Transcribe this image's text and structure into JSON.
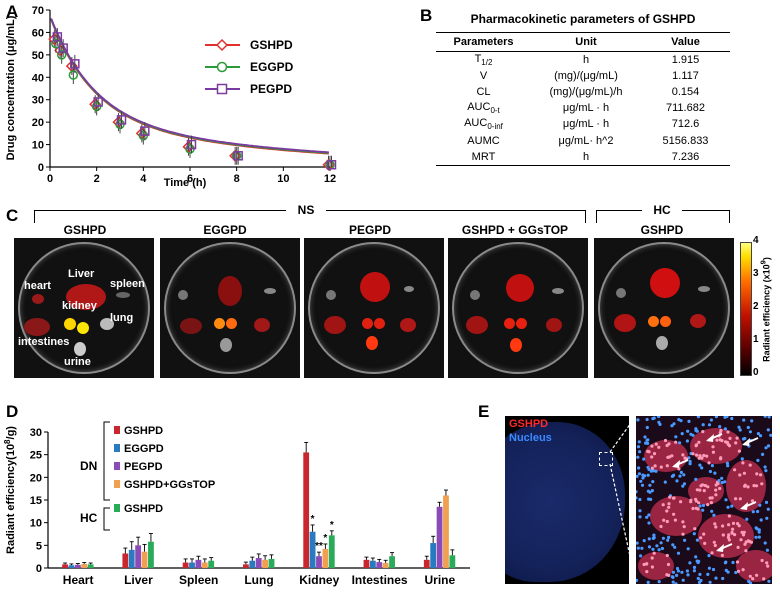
{
  "panels": {
    "a": "A",
    "b": "B",
    "c": "C",
    "d": "D",
    "e": "E"
  },
  "chart_a": {
    "type": "line",
    "xlabel": "Time (h)",
    "ylabel": "Drug concentration (μg/mL)",
    "xlim": [
      0,
      12
    ],
    "ylim": [
      0,
      70
    ],
    "xticks": [
      "0",
      "2",
      "4",
      "6",
      "8",
      "10",
      "12"
    ],
    "yticks": [
      "0",
      "10",
      "20",
      "30",
      "40",
      "50",
      "60",
      "70"
    ],
    "legend": [
      "GSHPD",
      "EGGPD",
      "PEGPD"
    ],
    "colors": {
      "GSHPD": "#e03030",
      "EGGPD": "#2a9a3a",
      "PEGPD": "#7a3aa0"
    },
    "x": [
      0.25,
      0.5,
      1,
      2,
      3,
      4,
      6,
      8,
      12
    ],
    "series": [
      {
        "name": "GSHPD",
        "values": [
          57,
          52,
          45,
          28,
          20,
          15,
          9,
          5,
          1
        ]
      },
      {
        "name": "EGGPD",
        "values": [
          55,
          50,
          41,
          27,
          19,
          14,
          8,
          5,
          1
        ]
      },
      {
        "name": "PEGPD",
        "values": [
          58,
          53,
          46,
          29,
          21,
          16,
          10,
          5,
          1
        ]
      }
    ]
  },
  "table_b": {
    "title": "Pharmacokinetic parameters of GSHPD",
    "headers": [
      "Parameters",
      "Unit",
      "Value"
    ],
    "rows": [
      {
        "p": "T",
        "sub": "1/2",
        "u": "h",
        "v": "1.915"
      },
      {
        "p": "V",
        "sub": "",
        "u": "(mg)/(μg/mL)",
        "v": "1.117"
      },
      {
        "p": "CL",
        "sub": "",
        "u": "(mg)/(μg/mL)/h",
        "v": "0.154"
      },
      {
        "p": "AUC",
        "sub": "0-t",
        "u": "μg/mL · h",
        "v": "711.682"
      },
      {
        "p": "AUC",
        "sub": "0-inf",
        "u": "μg/mL · h",
        "v": "712.6"
      },
      {
        "p": "AUMC",
        "sub": "",
        "u": "μg/mL· h^2",
        "v": "5156.833"
      },
      {
        "p": "MRT",
        "sub": "",
        "u": "h",
        "v": "7.236"
      }
    ]
  },
  "panel_c": {
    "group_ns": "NS",
    "group_hc": "HC",
    "dishes": [
      "GSHPD",
      "EGGPD",
      "PEGPD",
      "GSHPD + GGsTOP",
      "GSHPD"
    ],
    "organ_labels": {
      "liver": "Liver",
      "heart": "heart",
      "spleen": "spleen",
      "kidney": "kidney",
      "lung": "lung",
      "intestines": "intestines",
      "urine": "urine"
    },
    "colorbar_ticks": [
      "4",
      "3",
      "2",
      "1",
      "0"
    ],
    "colorbar_label": "Radiant efficiency (x10",
    "colorbar_exp": "9",
    "colorbar_close": ")"
  },
  "chart_d": {
    "type": "bar",
    "ylabel": "Radiant efficiency(10",
    "ylabel_exp": "8",
    "ylabel_unit": "/g)",
    "ylim": [
      0,
      30
    ],
    "yticks": [
      "0",
      "5",
      "10",
      "15",
      "20",
      "25",
      "30"
    ],
    "categories": [
      "Heart",
      "Liver",
      "Spleen",
      "Lung",
      "Kidney",
      "Intestines",
      "Urine"
    ],
    "group_dn": "DN",
    "group_hc": "HC",
    "legend": [
      "GSHPD",
      "EGGPD",
      "PEGPD",
      "GSHPD+GGsTOP",
      "GSHPD"
    ],
    "colors": [
      "#c8282d",
      "#2a7ac0",
      "#8a4ab8",
      "#f0a050",
      "#2aab5a"
    ],
    "series": [
      {
        "name": "GSHPD",
        "values": [
          0.8,
          3.2,
          1.2,
          0.8,
          25.5,
          1.8,
          1.8
        ],
        "err": [
          0.3,
          1.2,
          0.8,
          0.5,
          2.2,
          0.6,
          0.8
        ]
      },
      {
        "name": "EGGPD",
        "values": [
          0.6,
          4.0,
          1.2,
          1.6,
          8.0,
          1.6,
          5.5
        ],
        "err": [
          0.3,
          1.8,
          0.8,
          0.8,
          1.5,
          0.6,
          1.5
        ]
      },
      {
        "name": "PEGPD",
        "values": [
          0.7,
          5.0,
          1.8,
          2.2,
          2.6,
          1.3,
          13.5
        ],
        "err": [
          0.3,
          1.8,
          0.8,
          0.9,
          0.9,
          0.6,
          1.0
        ]
      },
      {
        "name": "GSHPD+GGsTOP",
        "values": [
          0.9,
          3.6,
          1.2,
          1.8,
          4.2,
          1.1,
          16.0
        ],
        "err": [
          0.3,
          1.6,
          0.8,
          0.9,
          1.1,
          0.6,
          1.2
        ]
      },
      {
        "name": "GSHPD HC",
        "values": [
          0.8,
          5.8,
          1.6,
          2.0,
          7.2,
          2.6,
          2.8
        ],
        "err": [
          0.3,
          1.8,
          0.7,
          0.9,
          1.0,
          0.8,
          1.2
        ]
      }
    ],
    "annotations": [
      "*",
      "*",
      "**",
      "*",
      "*"
    ]
  },
  "panel_e": {
    "label_gshpd": "GSHPD",
    "label_nucleus": "Nucleus"
  }
}
